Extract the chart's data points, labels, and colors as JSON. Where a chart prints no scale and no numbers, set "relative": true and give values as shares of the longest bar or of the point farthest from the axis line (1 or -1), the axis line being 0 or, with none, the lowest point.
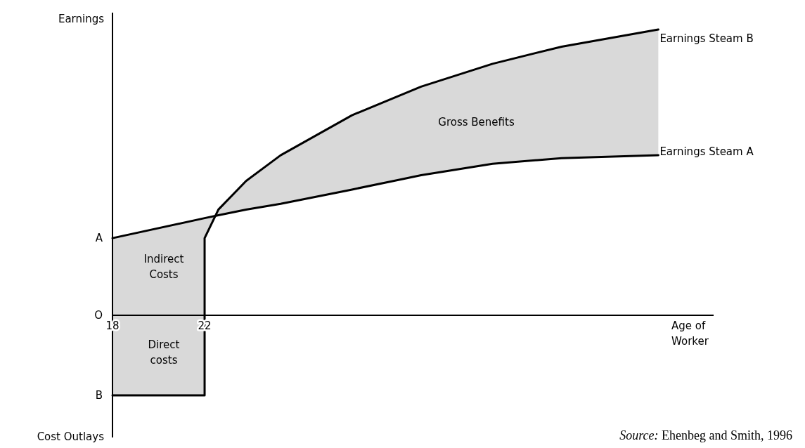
{
  "chart_data": {
    "type": "line",
    "relative": true,
    "ylabel": "Earnings",
    "xlabel": "Age of\nWorker",
    "xlim": [
      18,
      44.1
    ],
    "xticks": [
      18,
      22
    ],
    "series": [
      {
        "name": "Earnings Steam A",
        "color": "#000000",
        "x": [
          18,
          22,
          22,
          22.6,
          23.8,
          25.3,
          28.4,
          31.4,
          34.5,
          37.5,
          41.7
        ],
        "values": [
          0.27,
          0.34,
          0.34,
          0.35,
          0.37,
          0.39,
          0.44,
          0.49,
          0.53,
          0.55,
          0.56
        ]
      },
      {
        "name": "Earnings Steam B",
        "color": "#000000",
        "x": [
          18,
          22,
          22,
          22.6,
          23.8,
          25.3,
          28.4,
          31.4,
          34.5,
          37.5,
          41.7
        ],
        "values": [
          -0.28,
          -0.28,
          0.27,
          0.37,
          0.47,
          0.56,
          0.7,
          0.8,
          0.88,
          0.94,
          1
        ],
        "lower": [
          0.27,
          0.34,
          0.34,
          0.35,
          0.37,
          0.39,
          0.44,
          0.49,
          0.53,
          0.55,
          0.56
        ],
        "upper": [
          -0.28,
          -0.28,
          0.27,
          0.37,
          0.47,
          0.56,
          0.7,
          0.8,
          0.88,
          0.94,
          1
        ]
      }
    ],
    "annotations": [
      "A",
      "O",
      "B",
      "Gross Benefits",
      "Indirect\nCosts",
      "Direct\ncosts",
      "Cost Outlays",
      "Source: Ehenbeg and Smith, 1996"
    ]
  }
}
